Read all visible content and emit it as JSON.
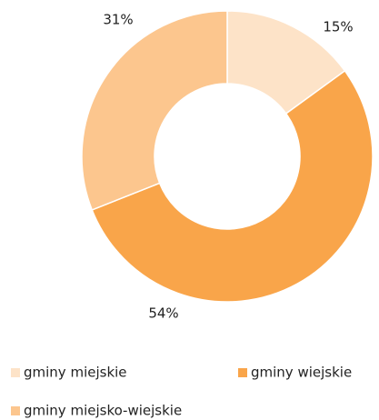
{
  "chart_data": {
    "type": "donut",
    "categories": [
      "gminy miejskie",
      "gminy wiejskie",
      "gminy miejsko-wiejskie"
    ],
    "values": [
      15,
      54,
      31
    ],
    "value_labels": [
      "15%",
      "54%",
      "31%"
    ],
    "colors": [
      "#fde3c8",
      "#f9a54a",
      "#fcc68e"
    ]
  }
}
